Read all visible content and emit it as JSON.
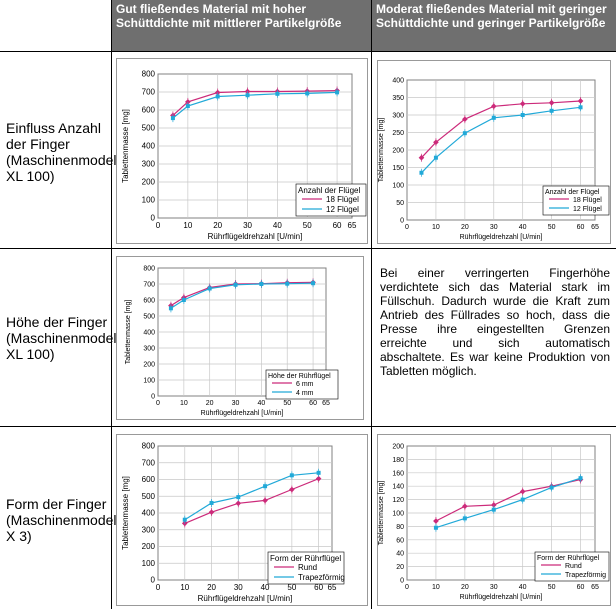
{
  "header": {
    "col2": "Gut fließendes Material mit hoher Schüttdichte mit mittlerer Partikelgröße",
    "col3": "Moderat fließendes Material mit geringer Schüttdichte und geringer Partikelgröße"
  },
  "rows": [
    {
      "label": "Einfluss Anzahl der Finger (Maschinenmodel XL 100)"
    },
    {
      "label": "Höhe der Finger (Maschinenmodel XL 100)"
    },
    {
      "label": "Form der Finger (Maschinenmodel X 3)"
    }
  ],
  "note": "Bei einer verringerten Fingerhöhe verdichtete sich das Material stark im Füllschuh. Dadurch wurde die Kraft zum Antrieb des Füllrades so hoch, dass die Presse ihre eingestellten Grenzen erreichte und sich automatisch abschaltete. Es war keine Produktion von Tabletten möglich.",
  "colors": {
    "series_a": "#cc2a7a",
    "series_b": "#21a9d8",
    "header_bg": "#6f6f6f"
  },
  "chart_data": [
    {
      "type": "line",
      "xlabel": "Rührflügeldrehzahl [U/min]",
      "ylabel": "Tablettenmasse [mg]",
      "xlim": [
        0,
        65
      ],
      "ylim": [
        0,
        800
      ],
      "xticks": [
        0,
        10,
        20,
        30,
        40,
        50,
        60,
        65
      ],
      "yticks": [
        0,
        100,
        200,
        300,
        400,
        500,
        600,
        700,
        800
      ],
      "legend_title": "Anzahl der Flügel",
      "legend_position": "bottom-right",
      "series": [
        {
          "name": "18 Flügel",
          "x": [
            5,
            10,
            20,
            30,
            40,
            50,
            60
          ],
          "y": [
            570,
            645,
            697,
            703,
            703,
            705,
            708
          ]
        },
        {
          "name": "12 Flügel",
          "x": [
            5,
            10,
            20,
            30,
            40,
            50,
            60
          ],
          "y": [
            555,
            622,
            675,
            682,
            690,
            692,
            698
          ]
        }
      ]
    },
    {
      "type": "line",
      "xlabel": "Rührflügeldrehzahl [U/min]",
      "ylabel": "Tablettenmasse [mg]",
      "xlim": [
        0,
        65
      ],
      "ylim": [
        0,
        400
      ],
      "xticks": [
        0,
        10,
        20,
        30,
        40,
        50,
        60,
        65
      ],
      "yticks": [
        0,
        50,
        100,
        150,
        200,
        250,
        300,
        350,
        400
      ],
      "legend_title": "Anzahl der Flügel",
      "legend_position": "bottom-right",
      "series": [
        {
          "name": "18 Flügel",
          "x": [
            5,
            10,
            20,
            30,
            40,
            50,
            60
          ],
          "y": [
            178,
            222,
            288,
            325,
            332,
            335,
            340
          ]
        },
        {
          "name": "12 Flügel",
          "x": [
            5,
            10,
            20,
            30,
            40,
            50,
            60
          ],
          "y": [
            135,
            178,
            248,
            292,
            300,
            312,
            322
          ]
        }
      ]
    },
    {
      "type": "line",
      "xlabel": "Rührflügeldrehzahl [U/min]",
      "ylabel": "Tablettenmasse [mg]",
      "xlim": [
        0,
        65
      ],
      "ylim": [
        0,
        800
      ],
      "xticks": [
        0,
        10,
        20,
        30,
        40,
        50,
        60,
        65
      ],
      "yticks": [
        0,
        100,
        200,
        300,
        400,
        500,
        600,
        700,
        800
      ],
      "legend_title": "Höhe der Rührflügel",
      "legend_position": "bottom-right",
      "series": [
        {
          "name": "6 mm",
          "x": [
            5,
            10,
            20,
            30,
            40,
            50,
            60
          ],
          "y": [
            565,
            615,
            678,
            700,
            702,
            708,
            710
          ]
        },
        {
          "name": "4 mm",
          "x": [
            5,
            10,
            20,
            30,
            40,
            50,
            60
          ],
          "y": [
            548,
            600,
            672,
            695,
            700,
            702,
            705
          ]
        }
      ]
    },
    {
      "type": "line",
      "xlabel": "Rührflügeldrehzahl [U/min]",
      "ylabel": "Tablettenmasse [mg]",
      "xlim": [
        0,
        65
      ],
      "ylim": [
        0,
        800
      ],
      "xticks": [
        0,
        10,
        20,
        30,
        40,
        50,
        60,
        65
      ],
      "yticks": [
        0,
        100,
        200,
        300,
        400,
        500,
        600,
        700,
        800
      ],
      "legend_title": "Form der Rührflügel",
      "legend_position": "bottom-right",
      "series": [
        {
          "name": "Rund",
          "x": [
            10,
            20,
            30,
            40,
            50,
            60
          ],
          "y": [
            338,
            405,
            458,
            475,
            540,
            605
          ]
        },
        {
          "name": "Trapezförmig",
          "x": [
            10,
            20,
            30,
            40,
            50,
            60
          ],
          "y": [
            360,
            460,
            495,
            560,
            625,
            640
          ]
        }
      ]
    },
    {
      "type": "line",
      "xlabel": "Rührflügeldrehzahl [U/min]",
      "ylabel": "Tablettenmasse [mg]",
      "xlim": [
        0,
        65
      ],
      "ylim": [
        0,
        200
      ],
      "xticks": [
        0,
        10,
        20,
        30,
        40,
        50,
        60,
        65
      ],
      "yticks": [
        0,
        20,
        40,
        60,
        80,
        100,
        120,
        140,
        160,
        180,
        200
      ],
      "legend_title": "Form der Rührflügel",
      "legend_position": "bottom-right",
      "series": [
        {
          "name": "Rund",
          "x": [
            10,
            20,
            30,
            40,
            50,
            60
          ],
          "y": [
            88,
            110,
            112,
            132,
            140,
            150
          ]
        },
        {
          "name": "Trapezförmig",
          "x": [
            10,
            20,
            30,
            40,
            50,
            60
          ],
          "y": [
            78,
            92,
            105,
            120,
            138,
            152
          ]
        }
      ]
    }
  ]
}
